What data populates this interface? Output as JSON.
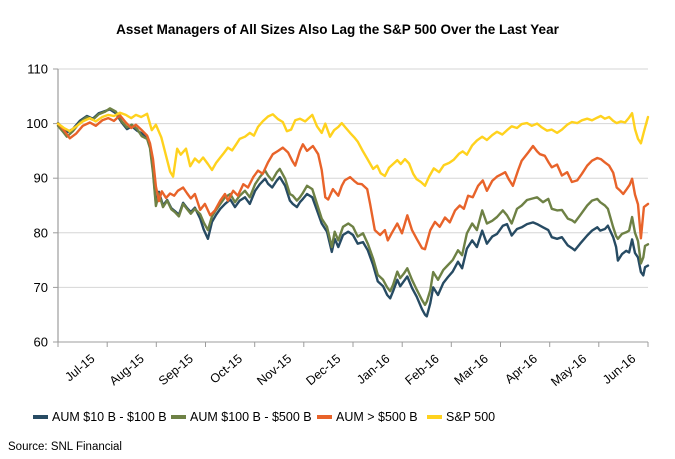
{
  "source": "Source: SNL Financial",
  "chart_data": {
    "type": "line",
    "title": "Asset Managers of All Sizes Also Lag the S&P 500 Over the Last Year",
    "xlabel": "",
    "ylabel": "",
    "x_axis": {
      "labels": [
        "Jul-15",
        "Aug-15",
        "Sep-15",
        "Oct-15",
        "Nov-15",
        "Dec-15",
        "Jan-16",
        "Feb-16",
        "Mar-16",
        "Apr-16",
        "May-16",
        "Jun-16"
      ],
      "note": "x stored per-point as percent of time span Jul-1-2015 to Jun-30-2016"
    },
    "y_axis": {
      "min": 60,
      "max": 110,
      "step": 10
    },
    "grid": "horizontal",
    "legend_position": "bottom",
    "series": [
      {
        "id": "aum-10-100",
        "name": "AUM $10 B - $100 B",
        "color": "#274b63",
        "points_uv": [
          0,
          100.1,
          1,
          98.9,
          1.5,
          98.4,
          2.5,
          99,
          3.7,
          100.5,
          4.9,
          101.4,
          5.9,
          100.9,
          6.9,
          101.9,
          8,
          102.3,
          8.8,
          102.6,
          9.8,
          101.9,
          10.8,
          100.2,
          11.7,
          99,
          12.5,
          99.5,
          13.4,
          98.7,
          14.2,
          98.2,
          15.1,
          97.6,
          15.6,
          95.8,
          16.1,
          91.5,
          16.6,
          85.4,
          17.1,
          87.5,
          17.8,
          85,
          18.5,
          86,
          19.2,
          84.5,
          19.8,
          84,
          20.5,
          83.3,
          21.2,
          85.5,
          21.9,
          84.5,
          22.5,
          83.8,
          23.2,
          84.6,
          24.1,
          82.6,
          24.7,
          80.6,
          25.4,
          78.9,
          26.1,
          82,
          26.8,
          83.3,
          27.5,
          84.4,
          28.3,
          85.3,
          29.2,
          86.1,
          30,
          84.7,
          30.8,
          85.9,
          31.7,
          86.5,
          32.5,
          85.3,
          33.4,
          87.7,
          34.2,
          88.9,
          35.1,
          89.9,
          35.6,
          89,
          36.3,
          88.3,
          37.1,
          89.6,
          37.6,
          90.2,
          38.5,
          88.6,
          39.3,
          85.9,
          39.8,
          85.3,
          40.5,
          84.7,
          41,
          85.6,
          41.5,
          86.2,
          42.2,
          87.1,
          43.1,
          86.5,
          43.9,
          84.1,
          44.7,
          81.7,
          45.6,
          80.2,
          46.4,
          76.5,
          46.9,
          78.9,
          47.5,
          77.4,
          48.3,
          79.6,
          49.2,
          80.2,
          50,
          79.6,
          50.8,
          78,
          51.7,
          78.3,
          52.5,
          76.8,
          53.4,
          74.1,
          54.2,
          71.1,
          55.1,
          70.2,
          55.8,
          68.6,
          56.3,
          68,
          56.8,
          69.3,
          57.5,
          71.4,
          58,
          70.2,
          58.6,
          71.1,
          59.2,
          72,
          60,
          69.9,
          60.8,
          68.3,
          61.7,
          66,
          62.2,
          65,
          62.5,
          64.7,
          63.1,
          67.1,
          63.6,
          70,
          64.4,
          68.6,
          65.3,
          70.8,
          66.1,
          71.9,
          66.9,
          72.9,
          67.8,
          74.7,
          68.5,
          73.5,
          69.3,
          77.1,
          70.2,
          78.6,
          71,
          77.4,
          71.9,
          80.4,
          72.7,
          78,
          73.6,
          79.3,
          74.4,
          79.8,
          75.4,
          81.3,
          76.1,
          81.6,
          76.9,
          79.5,
          77.8,
          80.7,
          78.6,
          81,
          79.5,
          81.6,
          80.5,
          81.9,
          81.2,
          81.6,
          82.2,
          81,
          83.1,
          80.5,
          83.7,
          79.2,
          84.6,
          78.9,
          85.4,
          79.2,
          86.4,
          77.7,
          87.1,
          77.2,
          87.6,
          76.8,
          88.5,
          78,
          89.7,
          79.5,
          90.5,
          80.4,
          91.4,
          81,
          91.9,
          80.4,
          92.7,
          80.7,
          93.2,
          81.3,
          94.1,
          79.2,
          94.6,
          77.4,
          94.9,
          74.9,
          95.6,
          76.1,
          96.3,
          76.7,
          96.8,
          76.4,
          97.3,
          78.8,
          97.8,
          76.3,
          98.3,
          75.5,
          98.8,
          72.8,
          99.2,
          72.2,
          99.5,
          73.7,
          100,
          74
        ]
      },
      {
        "id": "aum-100-500",
        "name": "AUM $100 B - $500 B",
        "color": "#6e8145",
        "points_uv": [
          0,
          99.6,
          1,
          98.3,
          1.5,
          97.6,
          2.5,
          98.6,
          3.7,
          100.2,
          4.9,
          101.2,
          5.9,
          100.7,
          6.9,
          101.7,
          8,
          102.2,
          8.8,
          102.8,
          9.8,
          102.2,
          10.8,
          100.4,
          11.7,
          99.3,
          12.5,
          99.8,
          13.4,
          99,
          14.2,
          97.7,
          15.1,
          97.2,
          15.6,
          95.5,
          16.1,
          91,
          16.6,
          84.9,
          17.1,
          87.2,
          17.8,
          84.7,
          18.5,
          85.9,
          19.2,
          84.3,
          19.8,
          83.8,
          20.5,
          83,
          21.2,
          85.3,
          21.9,
          84.3,
          22.5,
          83.5,
          23.2,
          84.4,
          24.1,
          83.4,
          24.7,
          81.9,
          25.4,
          80.5,
          26.1,
          83,
          26.8,
          84.2,
          27.5,
          85.3,
          28.3,
          86.5,
          29.2,
          87.1,
          30,
          85.6,
          30.8,
          86.8,
          31.7,
          87.7,
          32.5,
          86.5,
          33.4,
          88.9,
          34.2,
          90.2,
          35.1,
          91.4,
          35.6,
          90.5,
          36.3,
          89.6,
          37.1,
          91.1,
          37.6,
          91.7,
          38.5,
          89.9,
          39.3,
          87.1,
          39.8,
          86.8,
          40.5,
          85.9,
          41,
          86.5,
          41.5,
          87.3,
          42.2,
          88.6,
          43.1,
          88,
          43.9,
          85.3,
          44.7,
          82.6,
          45.6,
          81.1,
          46.4,
          77.4,
          46.9,
          80.2,
          47.5,
          78.6,
          48.3,
          81.1,
          49.2,
          81.7,
          50,
          81.1,
          50.8,
          79.3,
          51.7,
          79.9,
          52.5,
          78,
          53.4,
          75.3,
          54.2,
          72.3,
          55.1,
          71.4,
          55.8,
          70,
          56.3,
          69.3,
          56.8,
          70.5,
          57.5,
          72.9,
          58,
          71.7,
          58.6,
          72.5,
          59.2,
          73.5,
          60,
          71.4,
          60.8,
          69.6,
          61.7,
          67.7,
          62.2,
          66.8,
          62.5,
          67.4,
          63.1,
          69.5,
          63.6,
          72.8,
          64.4,
          71.4,
          65.3,
          73.2,
          66.1,
          74.1,
          66.9,
          75,
          67.8,
          76.8,
          68.5,
          75.9,
          69.3,
          79.9,
          70.2,
          81.7,
          71,
          80.5,
          71.9,
          84.1,
          72.7,
          81.7,
          73.6,
          82.2,
          74.4,
          82.9,
          75.4,
          84.1,
          76.1,
          83.2,
          76.9,
          81.7,
          77.8,
          84.4,
          78.6,
          85,
          79.5,
          86,
          80.5,
          86.3,
          81.2,
          86.5,
          82.2,
          85.6,
          83.1,
          86.2,
          83.7,
          84.4,
          84.6,
          84.1,
          85.4,
          84.2,
          86.4,
          82.6,
          87.1,
          82.3,
          87.6,
          81.9,
          88.5,
          83.2,
          89.7,
          85,
          90.5,
          85.9,
          91.4,
          86.2,
          91.9,
          85.6,
          92.7,
          85,
          93.2,
          84.4,
          94.1,
          81,
          94.6,
          79.4,
          94.9,
          78.9,
          95.6,
          79.8,
          96.3,
          80.1,
          96.8,
          80.4,
          97.3,
          82.9,
          97.8,
          80,
          98.3,
          78.5,
          98.8,
          74.4,
          99.2,
          75.5,
          99.5,
          77.6,
          100,
          77.9
        ]
      },
      {
        "id": "aum-over-500",
        "name": "AUM > $500 B",
        "color": "#e8632a",
        "points_uv": [
          0,
          100,
          1,
          98.8,
          2,
          97.3,
          3.1,
          98.2,
          4.2,
          99.6,
          5.4,
          100.2,
          6.4,
          99.6,
          7.5,
          100.6,
          8.5,
          101,
          9.5,
          100.5,
          10.5,
          101.5,
          11.5,
          100.2,
          12.4,
          99.2,
          13.2,
          99.8,
          14.1,
          98.9,
          15.1,
          97.8,
          15.6,
          96.4,
          16.1,
          93.5,
          16.6,
          88.5,
          17.1,
          85.8,
          17.6,
          87.6,
          18.3,
          86.4,
          19,
          87.2,
          19.7,
          86.8,
          20.3,
          87.7,
          21.2,
          88.3,
          21.9,
          87.2,
          22.5,
          86.3,
          23.2,
          87.1,
          24.1,
          84.2,
          24.9,
          85.3,
          25.8,
          83.2,
          26.6,
          84.1,
          27.5,
          85.9,
          28.3,
          87.1,
          28.8,
          85.9,
          29.7,
          87.7,
          30.5,
          86.8,
          31.4,
          88.9,
          32.2,
          88.3,
          33.1,
          90.2,
          33.9,
          91.4,
          34.7,
          90.8,
          35.6,
          92.9,
          36.4,
          94.4,
          37.3,
          95,
          38.1,
          95.6,
          39,
          94.7,
          39.7,
          93.2,
          40.2,
          92.3,
          41,
          95,
          41.5,
          96.2,
          42.2,
          95,
          43.2,
          95.9,
          44.1,
          94.4,
          44.7,
          91.5,
          45.3,
          86.5,
          45.8,
          86.1,
          46.6,
          88,
          47.5,
          86.8,
          48.1,
          88.6,
          48.6,
          89.6,
          49.5,
          90.2,
          50.2,
          89.5,
          50.8,
          89,
          51.5,
          88.9,
          52.4,
          88,
          52.9,
          85.3,
          53.7,
          80.5,
          54.6,
          79.6,
          55.4,
          80.5,
          55.9,
          78.6,
          56.6,
          80,
          57.5,
          81.7,
          58.3,
          79.9,
          59.2,
          83.2,
          60,
          80.5,
          60.8,
          78.9,
          61.7,
          77.2,
          62.2,
          77,
          63.1,
          80.5,
          63.9,
          82,
          64.7,
          81.1,
          65.6,
          82.8,
          66.4,
          81.9,
          67.3,
          84.1,
          68.1,
          85,
          68.8,
          84.4,
          69.5,
          86.8,
          70.3,
          86.5,
          71.2,
          88.6,
          72,
          89.6,
          72.7,
          87.7,
          73.6,
          89.5,
          74.4,
          90.3,
          75.3,
          90.8,
          75.8,
          91.1,
          76.4,
          89.8,
          77.1,
          88.6,
          78,
          91.5,
          78.6,
          93.2,
          79.7,
          94.7,
          80.5,
          95.9,
          81.2,
          94.9,
          81.7,
          94.4,
          82.5,
          94.1,
          83.2,
          92.8,
          83.7,
          92,
          84.6,
          92.5,
          85.4,
          90.5,
          86.3,
          91.1,
          87.1,
          89.3,
          88,
          89.6,
          88.8,
          90.8,
          89.7,
          92.3,
          90.5,
          93.2,
          91.4,
          93.7,
          92,
          93.5,
          92.7,
          92.9,
          93.4,
          92.3,
          94.1,
          91,
          94.7,
          88.3,
          95.3,
          87.7,
          95.8,
          87.1,
          96.4,
          88,
          96.9,
          88.8,
          97.3,
          89.9,
          97.8,
          87,
          98.3,
          85.2,
          98.8,
          79,
          99.3,
          84.7,
          100,
          85.3
        ]
      },
      {
        "id": "sp500",
        "name": "S&P 500",
        "color": "#ffd21e",
        "points_uv": [
          0,
          100,
          1,
          99.2,
          2,
          98.6,
          3.1,
          99.5,
          4.2,
          100.4,
          5.4,
          101,
          6.4,
          100.4,
          7.5,
          101.2,
          8.5,
          101.6,
          9.5,
          101.4,
          10.5,
          102,
          11.5,
          101.6,
          12.4,
          101,
          13.2,
          101.6,
          14.1,
          101.2,
          15.1,
          101.8,
          15.9,
          98.8,
          16.6,
          99.8,
          17.5,
          97.5,
          18.1,
          95,
          19,
          91.2,
          19.5,
          90.3,
          20.2,
          95.4,
          20.8,
          94.3,
          21.7,
          95.4,
          22.4,
          92.2,
          23.2,
          93.6,
          23.9,
          92.9,
          24.6,
          93.8,
          25.4,
          92.6,
          26.1,
          91.5,
          26.8,
          92.8,
          27.5,
          93.8,
          28.1,
          94.6,
          28.8,
          95.6,
          29.5,
          95.1,
          30.2,
          96.2,
          30.8,
          97.2,
          31.7,
          97.6,
          32.5,
          98.3,
          33.2,
          97.8,
          33.9,
          99.4,
          34.7,
          100.4,
          35.6,
          101.3,
          36.4,
          101.7,
          37.3,
          100.8,
          38.1,
          100.3,
          38.8,
          98.6,
          39.5,
          98.9,
          40.2,
          100.6,
          41,
          100.9,
          41.9,
          100.4,
          43.1,
          101.6,
          43.9,
          99.5,
          44.7,
          98.3,
          45.3,
          100,
          46.1,
          97.6,
          46.8,
          98.8,
          47.5,
          99.4,
          48.1,
          100.1,
          48.8,
          99.2,
          49.5,
          98.3,
          50.2,
          97.5,
          50.8,
          96.7,
          51.7,
          94.9,
          52.5,
          93.4,
          53.4,
          91.7,
          54.1,
          92.3,
          54.7,
          90.9,
          55.4,
          90.4,
          56.1,
          91.9,
          56.8,
          92.6,
          57.5,
          93.3,
          58.1,
          92.6,
          58.8,
          93.5,
          59.5,
          92.7,
          60.2,
          90.8,
          60.8,
          89.8,
          61.5,
          89.3,
          62.2,
          88.6,
          62.9,
          90.3,
          63.7,
          91.8,
          64.6,
          91.1,
          65.4,
          92.4,
          66.3,
          92.8,
          67.1,
          93.4,
          68,
          94.5,
          68.6,
          94.9,
          69.3,
          94.3,
          70.2,
          96,
          71,
          96.9,
          71.9,
          97.6,
          72.7,
          97,
          73.6,
          97.9,
          74.4,
          98.5,
          75.3,
          98,
          76.1,
          98.8,
          76.9,
          99.5,
          77.8,
          99.2,
          78.6,
          99.9,
          79.5,
          100.1,
          80.3,
          99.6,
          81.2,
          100,
          82,
          99.3,
          82.9,
          98.7,
          83.7,
          98.9,
          84.6,
          98.3,
          85.4,
          98.9,
          86.3,
          99.8,
          87.1,
          100.3,
          88,
          100.1,
          88.8,
          100.6,
          89.7,
          100.9,
          90.5,
          100.6,
          91.4,
          101.1,
          92,
          101.4,
          92.7,
          100.9,
          93.4,
          101.2,
          94.1,
          100.5,
          94.7,
          100.1,
          95.4,
          100.4,
          96.1,
          100.2,
          96.8,
          101.1,
          97.3,
          101.9,
          97.8,
          99,
          98.3,
          97.2,
          98.8,
          96.4,
          99.3,
          98.5,
          100,
          101.2
        ]
      }
    ]
  }
}
